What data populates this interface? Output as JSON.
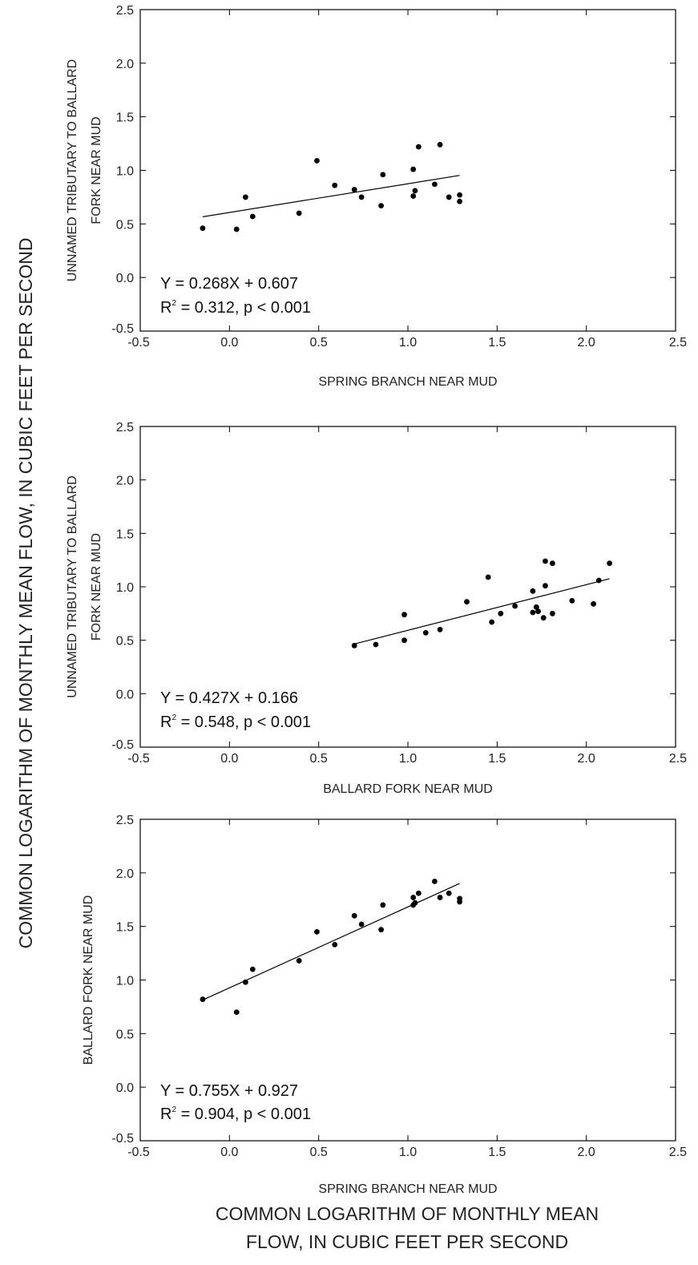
{
  "figure": {
    "shared_ylabel": "COMMON LOGARITHM OF MONTHLY MEAN FLOW, IN CUBIC FEET PER SECOND",
    "shared_xlabel_line1": "COMMON LOGARITHM OF MONTHLY MEAN",
    "shared_xlabel_line2": "FLOW, IN CUBIC FEET PER SECOND"
  },
  "colors": {
    "axis": "#000000",
    "points": "#000000",
    "text": "#222222"
  },
  "chart_data": [
    {
      "type": "scatter",
      "xlabel": "SPRING BRANCH NEAR MUD",
      "ylabel": [
        "UNNAMED TRIBUTARY TO BALLARD",
        "FORK NEAR MUD"
      ],
      "xlim": [
        -0.5,
        2.5
      ],
      "ylim": [
        -0.5,
        2.5
      ],
      "xticks": [
        "-0.5",
        "0.0",
        "0.5",
        "1.0",
        "1.5",
        "2.0",
        "2.5"
      ],
      "yticks": [
        "-0.5",
        "0.0",
        "0.5",
        "1.0",
        "1.5",
        "2.0",
        "2.5"
      ],
      "equation": "Y = 0.268X + 0.607",
      "r2_prefix": "R",
      "r2_sup": "2",
      "r2_text": " = 0.312, p < 0.001",
      "points": [
        [
          -0.15,
          0.46
        ],
        [
          0.04,
          0.45
        ],
        [
          0.09,
          0.75
        ],
        [
          0.13,
          0.57
        ],
        [
          0.39,
          0.6
        ],
        [
          0.49,
          1.09
        ],
        [
          0.59,
          0.86
        ],
        [
          0.7,
          0.82
        ],
        [
          0.74,
          0.75
        ],
        [
          0.85,
          0.67
        ],
        [
          0.86,
          0.96
        ],
        [
          1.03,
          0.76
        ],
        [
          1.03,
          1.01
        ],
        [
          1.04,
          0.81
        ],
        [
          1.06,
          1.22
        ],
        [
          1.15,
          0.87
        ],
        [
          1.18,
          1.24
        ],
        [
          1.23,
          0.75
        ],
        [
          1.29,
          0.77
        ],
        [
          1.29,
          0.71
        ]
      ],
      "fit": {
        "slope": 0.268,
        "intercept": 0.607,
        "x_range": [
          -0.15,
          1.29
        ]
      }
    },
    {
      "type": "scatter",
      "xlabel": "BALLARD FORK NEAR MUD",
      "ylabel": [
        "UNNAMED TRIBUTARY TO BALLARD",
        "FORK NEAR MUD"
      ],
      "xlim": [
        -0.5,
        2.5
      ],
      "ylim": [
        -0.5,
        2.5
      ],
      "xticks": [
        "-0.5",
        "0.0",
        "0.5",
        "1.0",
        "1.5",
        "2.0",
        "2.5"
      ],
      "yticks": [
        "-0.5",
        "0.0",
        "0.5",
        "1.0",
        "1.5",
        "2.0",
        "2.5"
      ],
      "equation": "Y  = 0.427X + 0.166",
      "r2_prefix": "R",
      "r2_sup": "2",
      "r2_text": " = 0.548, p < 0.001",
      "points": [
        [
          0.7,
          0.45
        ],
        [
          0.82,
          0.46
        ],
        [
          0.98,
          0.5
        ],
        [
          0.98,
          0.74
        ],
        [
          1.1,
          0.57
        ],
        [
          1.18,
          0.6
        ],
        [
          1.33,
          0.86
        ],
        [
          1.45,
          1.09
        ],
        [
          1.47,
          0.67
        ],
        [
          1.52,
          0.75
        ],
        [
          1.6,
          0.82
        ],
        [
          1.7,
          0.96
        ],
        [
          1.7,
          0.76
        ],
        [
          1.72,
          0.81
        ],
        [
          1.73,
          0.77
        ],
        [
          1.76,
          0.71
        ],
        [
          1.77,
          1.01
        ],
        [
          1.77,
          1.24
        ],
        [
          1.81,
          0.75
        ],
        [
          1.81,
          1.22
        ],
        [
          1.92,
          0.87
        ],
        [
          2.04,
          0.84
        ],
        [
          2.07,
          1.06
        ],
        [
          2.13,
          1.22
        ]
      ],
      "fit": {
        "slope": 0.427,
        "intercept": 0.166,
        "x_range": [
          0.7,
          2.13
        ]
      }
    },
    {
      "type": "scatter",
      "xlabel": "SPRING BRANCH NEAR MUD",
      "ylabel": [
        "BALLARD FORK NEAR MUD"
      ],
      "xlim": [
        -0.5,
        2.5
      ],
      "ylim": [
        -0.5,
        2.5
      ],
      "xticks": [
        "-0.5",
        "0.0",
        "0.5",
        "1.0",
        "1.5",
        "2.0",
        "2.5"
      ],
      "yticks": [
        "-0.5",
        "0.0",
        "0.5",
        "1.0",
        "1.5",
        "2.0",
        "2.5"
      ],
      "equation": "Y  = 0.755X + 0.927",
      "r2_prefix": "R",
      "r2_sup": "2",
      "r2_text": " = 0.904, p < 0.001",
      "points": [
        [
          -0.15,
          0.82
        ],
        [
          0.04,
          0.7
        ],
        [
          0.09,
          0.98
        ],
        [
          0.13,
          1.1
        ],
        [
          0.39,
          1.18
        ],
        [
          0.49,
          1.45
        ],
        [
          0.59,
          1.33
        ],
        [
          0.7,
          1.6
        ],
        [
          0.74,
          1.52
        ],
        [
          0.85,
          1.47
        ],
        [
          0.86,
          1.7
        ],
        [
          1.03,
          1.7
        ],
        [
          1.03,
          1.77
        ],
        [
          1.04,
          1.72
        ],
        [
          1.06,
          1.81
        ],
        [
          1.15,
          1.92
        ],
        [
          1.18,
          1.77
        ],
        [
          1.23,
          1.81
        ],
        [
          1.29,
          1.76
        ],
        [
          1.29,
          1.73
        ]
      ],
      "fit": {
        "slope": 0.755,
        "intercept": 0.927,
        "x_range": [
          -0.15,
          1.29
        ]
      }
    }
  ]
}
